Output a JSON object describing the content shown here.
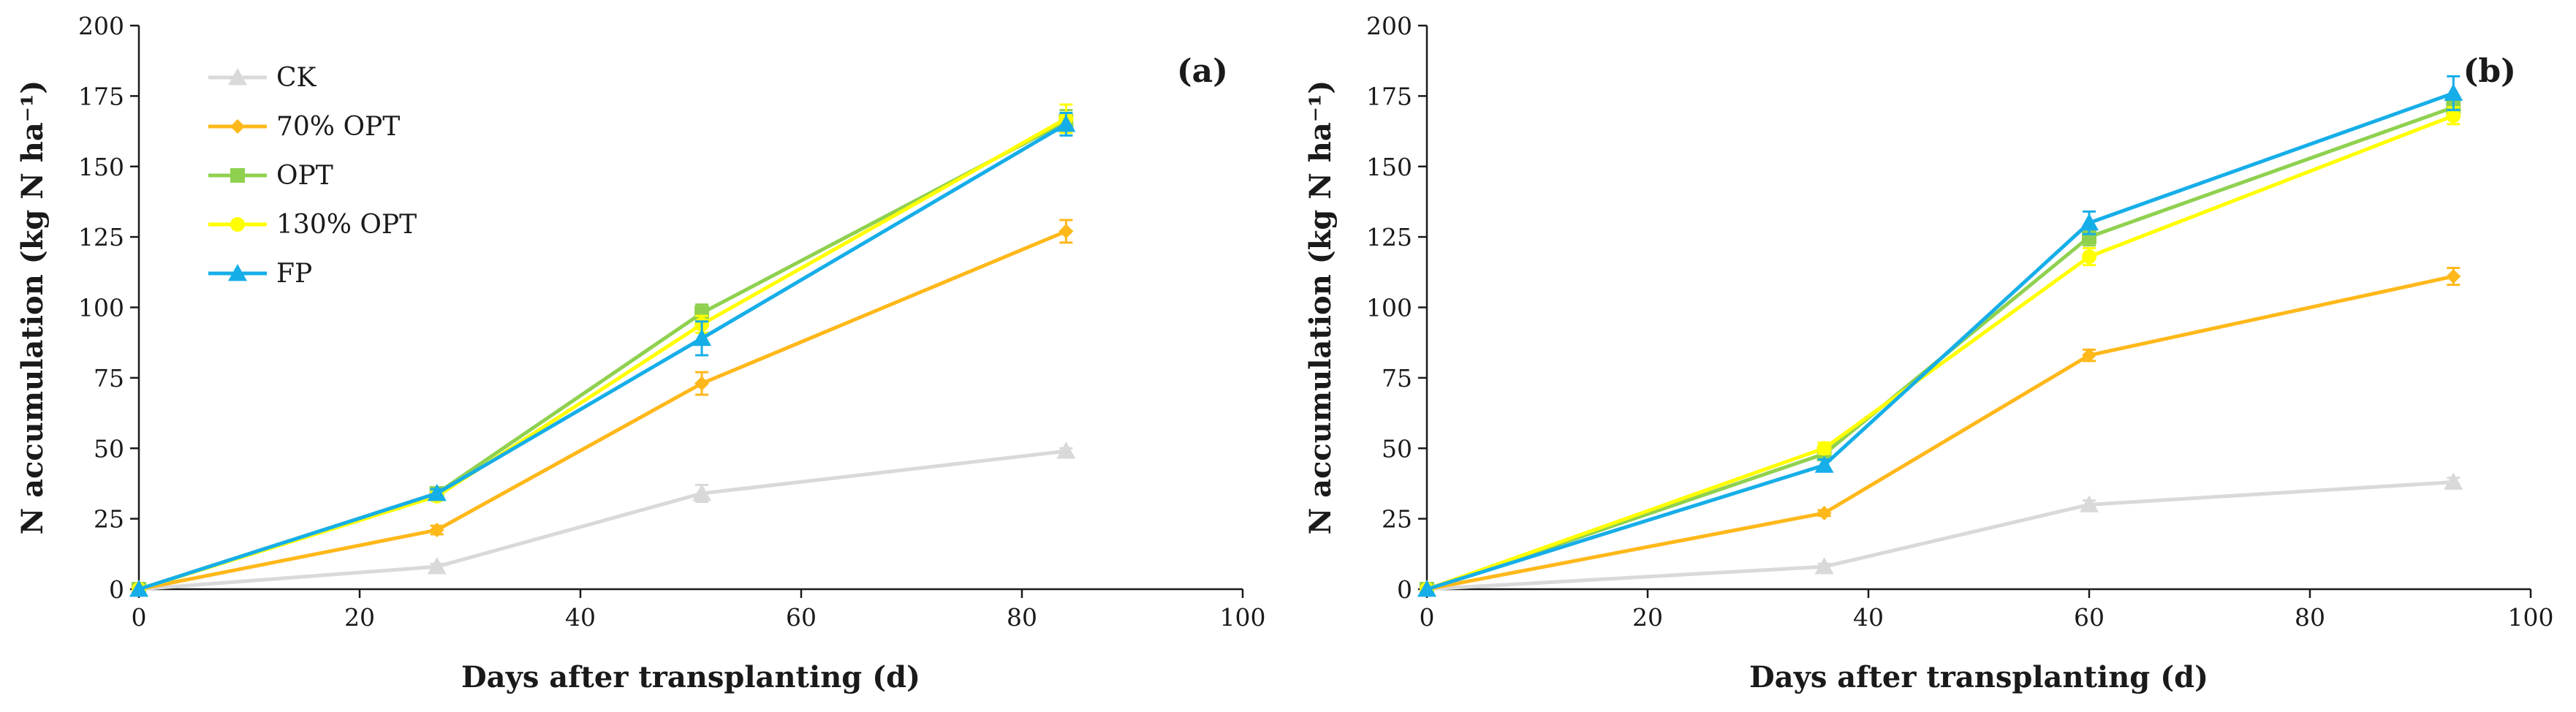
{
  "figure": {
    "colors": {
      "CK": "#d9d9d9",
      "70% OPT": "#ffb81a",
      "OPT": "#8fd14f",
      "130% OPT": "#ffff00",
      "FP": "#16aee8",
      "axis": "#1a1a1a"
    },
    "legend": [
      {
        "name": "CK",
        "marker": "triangle"
      },
      {
        "name": "70% OPT",
        "marker": "diamond"
      },
      {
        "name": "OPT",
        "marker": "square"
      },
      {
        "name": "130% OPT",
        "marker": "circle"
      },
      {
        "name": "FP",
        "marker": "triangle"
      }
    ]
  },
  "chart_data": [
    {
      "type": "line",
      "panel": "(a)",
      "xlabel": "Days after transplanting (d)",
      "ylabel": "N accumulation (kg N ha⁻¹)",
      "xlim": [
        0,
        100
      ],
      "ylim": [
        0,
        200
      ],
      "xticks": [
        0,
        20,
        40,
        60,
        80,
        100
      ],
      "yticks": [
        0,
        25,
        50,
        75,
        100,
        125,
        150,
        175,
        200
      ],
      "legend_position": "top-left",
      "series": [
        {
          "name": "CK",
          "x": [
            0,
            27,
            51,
            84
          ],
          "values": [
            0,
            8,
            34,
            49
          ],
          "errors": [
            0,
            1,
            3,
            1
          ]
        },
        {
          "name": "70% OPT",
          "x": [
            0,
            27,
            51,
            84
          ],
          "values": [
            0,
            21,
            73,
            127
          ],
          "errors": [
            0,
            1.5,
            4,
            4
          ]
        },
        {
          "name": "OPT",
          "x": [
            0,
            27,
            51,
            84
          ],
          "values": [
            0,
            34,
            98,
            166
          ],
          "errors": [
            0,
            1.5,
            3,
            4
          ]
        },
        {
          "name": "130% OPT",
          "x": [
            0,
            27,
            51,
            84
          ],
          "values": [
            0,
            33,
            94,
            167
          ],
          "errors": [
            0,
            1.5,
            3,
            5
          ]
        },
        {
          "name": "FP",
          "x": [
            0,
            27,
            51,
            84
          ],
          "values": [
            0,
            34,
            89,
            165
          ],
          "errors": [
            0,
            1.5,
            6,
            4
          ]
        }
      ]
    },
    {
      "type": "line",
      "panel": "(b)",
      "xlabel": "Days after transplanting (d)",
      "ylabel": "N accumulation (kg N ha⁻¹)",
      "xlim": [
        0,
        100
      ],
      "ylim": [
        0,
        200
      ],
      "xticks": [
        0,
        20,
        40,
        60,
        80,
        100
      ],
      "yticks": [
        0,
        25,
        50,
        75,
        100,
        125,
        150,
        175,
        200
      ],
      "legend_position": "none",
      "series": [
        {
          "name": "CK",
          "x": [
            0,
            36,
            60,
            93
          ],
          "values": [
            0,
            8,
            30,
            38
          ],
          "errors": [
            0,
            1,
            1.5,
            1.5
          ]
        },
        {
          "name": "70% OPT",
          "x": [
            0,
            36,
            60,
            93
          ],
          "values": [
            0,
            27,
            83,
            111
          ],
          "errors": [
            0,
            1,
            2,
            3
          ]
        },
        {
          "name": "OPT",
          "x": [
            0,
            36,
            60,
            93
          ],
          "values": [
            0,
            48,
            125,
            171
          ],
          "errors": [
            0,
            2,
            3,
            3
          ]
        },
        {
          "name": "130% OPT",
          "x": [
            0,
            36,
            60,
            93
          ],
          "values": [
            0,
            50,
            118,
            168
          ],
          "errors": [
            0,
            2,
            3,
            3
          ]
        },
        {
          "name": "FP",
          "x": [
            0,
            36,
            60,
            93
          ],
          "values": [
            0,
            44,
            130,
            176
          ],
          "errors": [
            0,
            2,
            4,
            6
          ]
        }
      ]
    }
  ]
}
